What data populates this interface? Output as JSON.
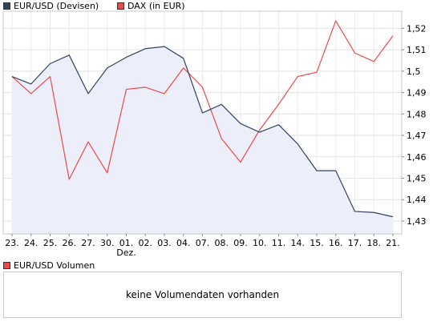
{
  "legend": [
    {
      "label": "EUR/USD (Devisen)",
      "color": "#35415f"
    },
    {
      "label": "DAX (in EUR)",
      "color": "#f04848"
    }
  ],
  "month_label": "Dez.",
  "volume": {
    "legend_label": "EUR/USD Volumen",
    "legend_color": "#f04848",
    "message": "keine Volumendaten vorhanden"
  },
  "chart_data": {
    "type": "line",
    "categories": [
      "23.",
      "24.",
      "25.",
      "26.",
      "27.",
      "30.",
      "01.",
      "02.",
      "03.",
      "04.",
      "07.",
      "08.",
      "09.",
      "10.",
      "11.",
      "14.",
      "15.",
      "16.",
      "17.",
      "18.",
      "21."
    ],
    "y_ticks": [
      "1,43",
      "1,44",
      "1,45",
      "1,46",
      "1,47",
      "1,48",
      "1,49",
      "1,5",
      "1,51",
      "1,52"
    ],
    "ylim": [
      1.424,
      1.528
    ],
    "grid": true,
    "legend_position": "top-left",
    "series": [
      {
        "name": "EUR/USD (Devisen)",
        "color": "#35415f",
        "fill": "#eceffa",
        "values": [
          1.4975,
          1.494,
          1.5035,
          1.5075,
          1.4895,
          1.5015,
          1.5065,
          1.5105,
          1.5115,
          1.506,
          1.4805,
          1.4845,
          1.4755,
          1.4715,
          1.475,
          1.466,
          1.4535,
          1.4535,
          1.4345,
          1.434,
          1.432
        ]
      },
      {
        "name": "DAX (in EUR)",
        "color": "#f04848",
        "values": [
          1.4975,
          1.4895,
          1.4975,
          1.4495,
          1.467,
          1.4525,
          1.4915,
          1.4925,
          1.4895,
          1.5015,
          1.4925,
          1.4685,
          1.4575,
          1.4725,
          1.4845,
          1.4975,
          1.4995,
          1.5235,
          1.5085,
          1.5045,
          1.5165
        ]
      }
    ]
  }
}
